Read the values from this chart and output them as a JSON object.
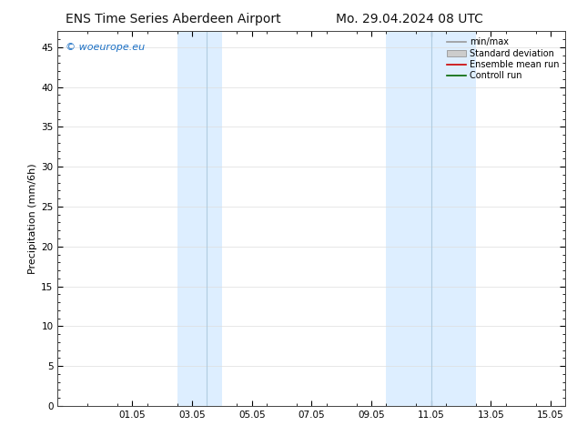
{
  "title_left": "ENS Time Series Aberdeen Airport",
  "title_right": "Mo. 29.04.2024 08 UTC",
  "ylabel": "Precipitation (mm/6h)",
  "watermark": "© woeurope.eu",
  "xlim_start": -0.5,
  "xlim_end": 16.5,
  "ylim": [
    0,
    47
  ],
  "yticks": [
    0,
    5,
    10,
    15,
    20,
    25,
    30,
    35,
    40,
    45
  ],
  "xtick_labels": [
    "01.05",
    "03.05",
    "05.05",
    "07.05",
    "09.05",
    "11.05",
    "13.05",
    "15.05"
  ],
  "xtick_positions": [
    2,
    4,
    6,
    8,
    10,
    12,
    14,
    16
  ],
  "shade_bands": [
    {
      "xmin": 3.5,
      "xmax": 5.0,
      "divider": 4.5
    },
    {
      "xmin": 10.5,
      "xmax": 13.5,
      "divider": 12.0
    }
  ],
  "shade_color": "#ddeeff",
  "divider_color": "#b0cce0",
  "legend_items": [
    {
      "label": "min/max",
      "color": "#999999",
      "style": "line"
    },
    {
      "label": "Standard deviation",
      "color": "#cccccc",
      "style": "fill"
    },
    {
      "label": "Ensemble mean run",
      "color": "#cc0000",
      "style": "line"
    },
    {
      "label": "Controll run",
      "color": "#006600",
      "style": "line"
    }
  ],
  "background_color": "#ffffff",
  "grid_color": "#dddddd",
  "spine_color": "#444444",
  "title_fontsize": 10,
  "label_fontsize": 8,
  "tick_fontsize": 7.5,
  "legend_fontsize": 7,
  "watermark_color": "#1a6fc4",
  "watermark_fontsize": 8
}
